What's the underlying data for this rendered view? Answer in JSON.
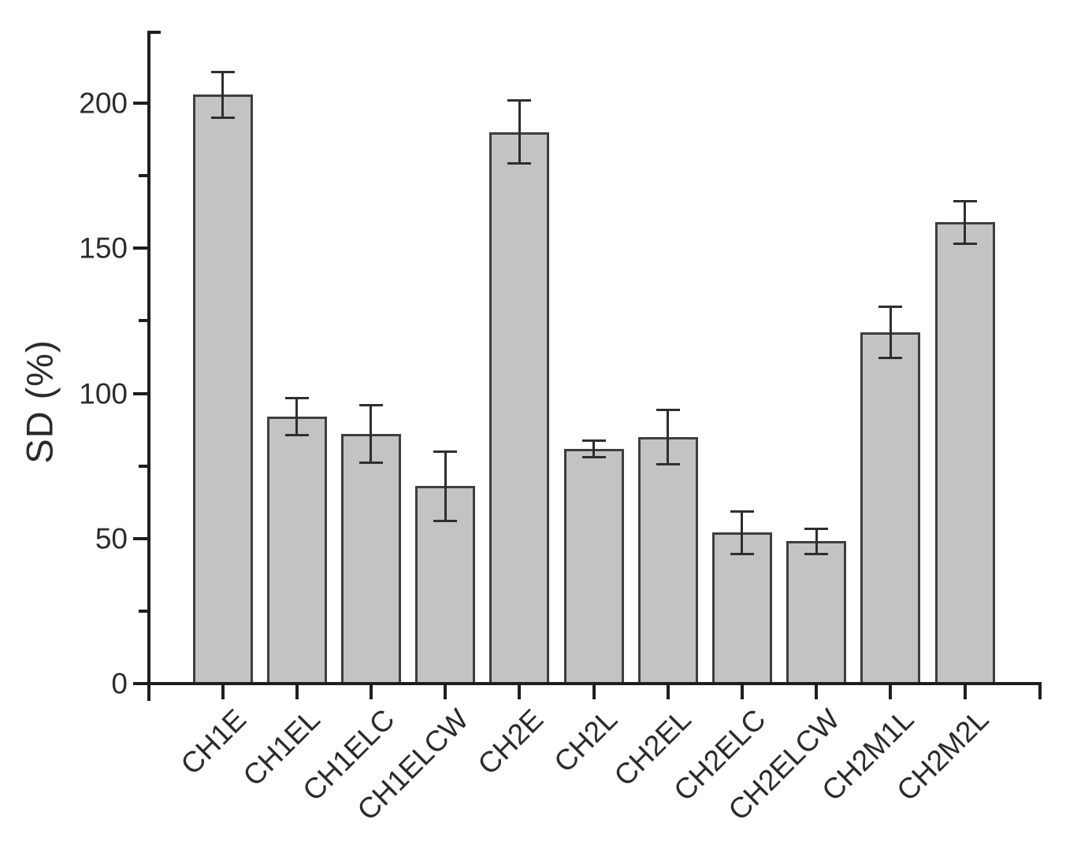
{
  "figure": {
    "background_color": "#ffffff",
    "title": ""
  },
  "chart_data": {
    "type": "bar",
    "title": "",
    "xlabel": "",
    "ylabel": "SD (%)",
    "categories": [
      "CH1E",
      "CH1EL",
      "CH1ELC",
      "CH1ELCW",
      "CH2E",
      "CH2L",
      "CH2EL",
      "CH2ELC",
      "CH2ELCW",
      "CH2M1L",
      "CH2M2L"
    ],
    "values": [
      203,
      92,
      86,
      68,
      190,
      81,
      85,
      52,
      49,
      121,
      159
    ],
    "error_bars": [
      8,
      6.5,
      10,
      12,
      11,
      3,
      9.5,
      7.5,
      4.5,
      9,
      7.5
    ],
    "ylim": [
      0,
      225
    ],
    "ytick_major": [
      0,
      50,
      100,
      150,
      200
    ],
    "ytick_minor": [
      25,
      75,
      125,
      175
    ],
    "grid": false,
    "legend": null,
    "bar_fill_color": "#c3c3c3",
    "bar_border_color": "#3e3e3e",
    "error_bar_color": "#2e2e2e",
    "axis_color": "#1e1e1e",
    "text_color": "#2b2b2b"
  }
}
